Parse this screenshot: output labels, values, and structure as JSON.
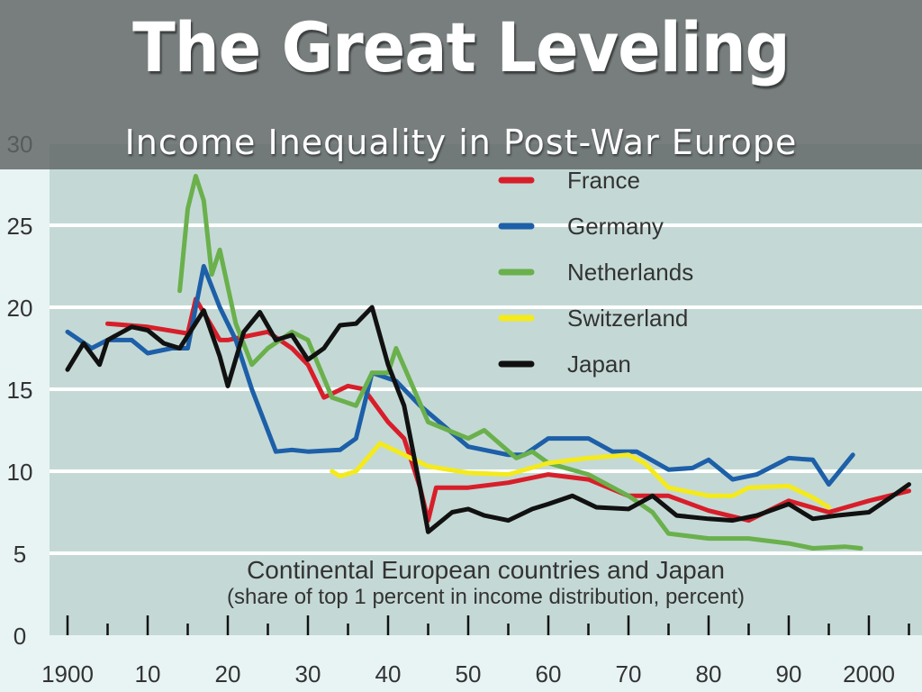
{
  "slide": {
    "title": "The Great Leveling",
    "subtitle": "Income Inequality in Post-War Europe"
  },
  "chart_data": {
    "type": "line",
    "title": "Continental European countries and Japan",
    "subtitle": "(share of top 1 percent in income distribution, percent)",
    "xlabel": "",
    "ylabel": "",
    "xlim": [
      1898,
      2008
    ],
    "ylim": [
      0,
      30
    ],
    "yticks": [
      0,
      5,
      10,
      15,
      20,
      25,
      30
    ],
    "xtick_labels": [
      "1900",
      "10",
      "20",
      "30",
      "40",
      "50",
      "60",
      "70",
      "80",
      "90",
      "2000"
    ],
    "grid": true,
    "legend_position": "top-right",
    "colors": {
      "plot_bg": "#c4d9d5",
      "page_bg": "#e8f3f3"
    },
    "series": [
      {
        "name": "France",
        "color": "#d81e2a",
        "points": [
          [
            1905,
            19
          ],
          [
            1910,
            18.8
          ],
          [
            1915,
            18.4
          ],
          [
            1916,
            20.5
          ],
          [
            1919,
            18
          ],
          [
            1920,
            18
          ],
          [
            1925,
            18.5
          ],
          [
            1928,
            17.5
          ],
          [
            1930,
            16.5
          ],
          [
            1932,
            14.5
          ],
          [
            1935,
            15.2
          ],
          [
            1937,
            15
          ],
          [
            1940,
            13
          ],
          [
            1942,
            12
          ],
          [
            1944,
            9
          ],
          [
            1945,
            7
          ],
          [
            1946,
            9
          ],
          [
            1950,
            9
          ],
          [
            1955,
            9.3
          ],
          [
            1960,
            9.8
          ],
          [
            1965,
            9.5
          ],
          [
            1970,
            8.5
          ],
          [
            1975,
            8.5
          ],
          [
            1980,
            7.6
          ],
          [
            1985,
            7
          ],
          [
            1990,
            8.2
          ],
          [
            1995,
            7.5
          ],
          [
            2000,
            8.2
          ],
          [
            2005,
            8.8
          ]
        ]
      },
      {
        "name": "Germany",
        "color": "#1d5fa8",
        "points": [
          [
            1900,
            18.5
          ],
          [
            1903,
            17.5
          ],
          [
            1905,
            18
          ],
          [
            1908,
            18
          ],
          [
            1910,
            17.2
          ],
          [
            1913,
            17.5
          ],
          [
            1915,
            17.5
          ],
          [
            1917,
            22.5
          ],
          [
            1919,
            20
          ],
          [
            1921,
            18
          ],
          [
            1923,
            15
          ],
          [
            1926,
            11.2
          ],
          [
            1928,
            11.3
          ],
          [
            1930,
            11.2
          ],
          [
            1934,
            11.3
          ],
          [
            1936,
            12
          ],
          [
            1938,
            16
          ],
          [
            1941,
            15.5
          ],
          [
            1944,
            14
          ],
          [
            1950,
            11.5
          ],
          [
            1955,
            11
          ],
          [
            1957,
            11
          ],
          [
            1960,
            12
          ],
          [
            1965,
            12
          ],
          [
            1968,
            11.2
          ],
          [
            1971,
            11.2
          ],
          [
            1975,
            10.1
          ],
          [
            1978,
            10.2
          ],
          [
            1980,
            10.7
          ],
          [
            1983,
            9.5
          ],
          [
            1986,
            9.8
          ],
          [
            1990,
            10.8
          ],
          [
            1993,
            10.7
          ],
          [
            1995,
            9.2
          ],
          [
            1998,
            11
          ]
        ]
      },
      {
        "name": "Netherlands",
        "color": "#6ab04c",
        "points": [
          [
            1914,
            21
          ],
          [
            1915,
            26
          ],
          [
            1916,
            28
          ],
          [
            1917,
            26.5
          ],
          [
            1918,
            22
          ],
          [
            1919,
            23.5
          ],
          [
            1921,
            19
          ],
          [
            1923,
            16.5
          ],
          [
            1925,
            17.5
          ],
          [
            1928,
            18.5
          ],
          [
            1930,
            18
          ],
          [
            1933,
            14.5
          ],
          [
            1936,
            14
          ],
          [
            1938,
            16
          ],
          [
            1940,
            16
          ],
          [
            1941,
            17.5
          ],
          [
            1945,
            13
          ],
          [
            1950,
            12
          ],
          [
            1952,
            12.5
          ],
          [
            1956,
            10.8
          ],
          [
            1958,
            11.2
          ],
          [
            1960,
            10.5
          ],
          [
            1965,
            9.8
          ],
          [
            1970,
            8.5
          ],
          [
            1973,
            7.5
          ],
          [
            1975,
            6.2
          ],
          [
            1980,
            5.9
          ],
          [
            1985,
            5.9
          ],
          [
            1990,
            5.6
          ],
          [
            1993,
            5.3
          ],
          [
            1997,
            5.4
          ],
          [
            1999,
            5.3
          ]
        ]
      },
      {
        "name": "Switzerland",
        "color": "#f4ea1c",
        "points": [
          [
            1933,
            10
          ],
          [
            1934,
            9.7
          ],
          [
            1936,
            10
          ],
          [
            1939,
            11.7
          ],
          [
            1942,
            11
          ],
          [
            1945,
            10.3
          ],
          [
            1950,
            9.9
          ],
          [
            1955,
            9.8
          ],
          [
            1960,
            10.5
          ],
          [
            1965,
            10.8
          ],
          [
            1970,
            11
          ],
          [
            1972,
            10.5
          ],
          [
            1975,
            9
          ],
          [
            1980,
            8.5
          ],
          [
            1983,
            8.5
          ],
          [
            1985,
            9
          ],
          [
            1990,
            9.1
          ],
          [
            1993,
            8.4
          ],
          [
            1995,
            7.8
          ]
        ]
      },
      {
        "name": "Japan",
        "color": "#111111",
        "points": [
          [
            1900,
            16.2
          ],
          [
            1902,
            17.8
          ],
          [
            1904,
            16.5
          ],
          [
            1905,
            18
          ],
          [
            1908,
            18.8
          ],
          [
            1910,
            18.6
          ],
          [
            1912,
            17.8
          ],
          [
            1914,
            17.5
          ],
          [
            1917,
            19.8
          ],
          [
            1919,
            17
          ],
          [
            1920,
            15.2
          ],
          [
            1922,
            18.5
          ],
          [
            1924,
            19.7
          ],
          [
            1926,
            18
          ],
          [
            1928,
            18.3
          ],
          [
            1930,
            16.8
          ],
          [
            1932,
            17.5
          ],
          [
            1934,
            18.9
          ],
          [
            1936,
            19
          ],
          [
            1938,
            20
          ],
          [
            1940,
            16.5
          ],
          [
            1942,
            14
          ],
          [
            1944,
            9
          ],
          [
            1945,
            6.3
          ],
          [
            1948,
            7.5
          ],
          [
            1950,
            7.7
          ],
          [
            1952,
            7.3
          ],
          [
            1955,
            7
          ],
          [
            1958,
            7.7
          ],
          [
            1960,
            8
          ],
          [
            1963,
            8.5
          ],
          [
            1966,
            7.8
          ],
          [
            1970,
            7.7
          ],
          [
            1973,
            8.5
          ],
          [
            1976,
            7.3
          ],
          [
            1980,
            7.1
          ],
          [
            1983,
            7
          ],
          [
            1986,
            7.3
          ],
          [
            1990,
            8
          ],
          [
            1993,
            7.1
          ],
          [
            1996,
            7.3
          ],
          [
            2000,
            7.5
          ],
          [
            2003,
            8.5
          ],
          [
            2005,
            9.2
          ]
        ]
      }
    ]
  }
}
